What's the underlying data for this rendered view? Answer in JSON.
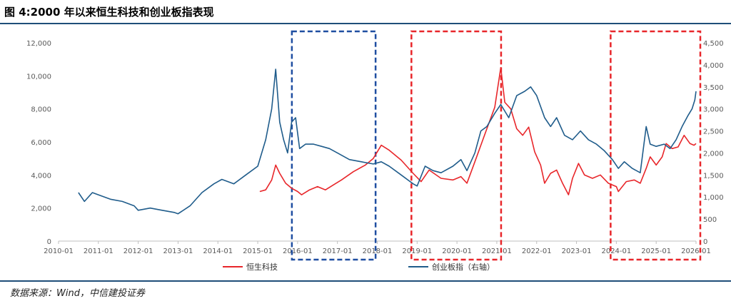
{
  "header": {
    "title": "图 4:2000 年以来恒生科技和创业板指表现"
  },
  "footer": {
    "source": "数据来源：Wind，中信建投证券"
  },
  "chart_data": {
    "type": "line",
    "title": "图 4:2000 年以来恒生科技和创业板指表现",
    "x_tick_labels": [
      "2010-01",
      "2011-01",
      "2012-01",
      "2013-01",
      "2014-01",
      "2015-01",
      "2016-01",
      "2017-01",
      "2018-01",
      "2019-01",
      "2020-01",
      "2021-01",
      "2022-01",
      "2023-01",
      "2024-01",
      "2025-01",
      "2026-01"
    ],
    "y_left": {
      "ticks": [
        "0",
        "2,000",
        "4,000",
        "6,000",
        "8,000",
        "10,000",
        "12,000"
      ],
      "range": [
        0,
        12000
      ]
    },
    "y_right": {
      "ticks": [
        "0",
        "500",
        "1,000",
        "1,500",
        "2,000",
        "2,500",
        "3,000",
        "3,500",
        "4,000",
        "4,500"
      ],
      "range": [
        0,
        4500
      ]
    },
    "x_range": [
      2010.0,
      2026.0
    ],
    "grid": false,
    "legend_position": "bottom",
    "series": [
      {
        "name": "恒生科技",
        "axis": "left",
        "color": "#e8262a",
        "points": [
          [
            2015.05,
            3000
          ],
          [
            2015.2,
            3100
          ],
          [
            2015.35,
            3700
          ],
          [
            2015.45,
            4600
          ],
          [
            2015.55,
            4100
          ],
          [
            2015.7,
            3500
          ],
          [
            2015.85,
            3200
          ],
          [
            2016.0,
            3000
          ],
          [
            2016.1,
            2800
          ],
          [
            2016.3,
            3100
          ],
          [
            2016.5,
            3300
          ],
          [
            2016.7,
            3100
          ],
          [
            2016.9,
            3400
          ],
          [
            2017.1,
            3700
          ],
          [
            2017.4,
            4200
          ],
          [
            2017.7,
            4600
          ],
          [
            2017.9,
            5000
          ],
          [
            2018.1,
            5800
          ],
          [
            2018.3,
            5500
          ],
          [
            2018.6,
            4900
          ],
          [
            2018.9,
            4100
          ],
          [
            2019.1,
            3600
          ],
          [
            2019.3,
            4300
          ],
          [
            2019.6,
            3800
          ],
          [
            2019.9,
            3700
          ],
          [
            2020.1,
            3900
          ],
          [
            2020.25,
            3500
          ],
          [
            2020.45,
            4800
          ],
          [
            2020.6,
            5800
          ],
          [
            2020.75,
            6800
          ],
          [
            2020.95,
            8100
          ],
          [
            2021.1,
            10500
          ],
          [
            2021.2,
            8400
          ],
          [
            2021.35,
            8000
          ],
          [
            2021.5,
            6800
          ],
          [
            2021.65,
            6400
          ],
          [
            2021.8,
            6900
          ],
          [
            2021.95,
            5400
          ],
          [
            2022.1,
            4600
          ],
          [
            2022.2,
            3500
          ],
          [
            2022.35,
            4100
          ],
          [
            2022.5,
            4300
          ],
          [
            2022.65,
            3500
          ],
          [
            2022.8,
            2800
          ],
          [
            2022.9,
            3800
          ],
          [
            2023.05,
            4700
          ],
          [
            2023.2,
            4000
          ],
          [
            2023.4,
            3800
          ],
          [
            2023.6,
            4000
          ],
          [
            2023.8,
            3500
          ],
          [
            2024.0,
            3300
          ],
          [
            2024.05,
            3000
          ],
          [
            2024.25,
            3600
          ],
          [
            2024.45,
            3700
          ],
          [
            2024.6,
            3500
          ],
          [
            2024.75,
            4400
          ],
          [
            2024.85,
            5100
          ],
          [
            2025.0,
            4600
          ],
          [
            2025.15,
            5100
          ],
          [
            2025.25,
            5900
          ],
          [
            2025.4,
            5600
          ],
          [
            2025.55,
            5700
          ],
          [
            2025.7,
            6400
          ],
          [
            2025.85,
            5900
          ],
          [
            2025.95,
            5800
          ],
          [
            2026.0,
            5900
          ]
        ]
      },
      {
        "name": "创业板指（右轴）",
        "axis": "right",
        "color": "#1f5c8b",
        "points": [
          [
            2010.5,
            1100
          ],
          [
            2010.65,
            900
          ],
          [
            2010.85,
            1100
          ],
          [
            2011.0,
            1050
          ],
          [
            2011.3,
            950
          ],
          [
            2011.6,
            900
          ],
          [
            2011.9,
            800
          ],
          [
            2012.0,
            700
          ],
          [
            2012.3,
            750
          ],
          [
            2012.6,
            700
          ],
          [
            2012.9,
            650
          ],
          [
            2013.0,
            620
          ],
          [
            2013.3,
            800
          ],
          [
            2013.6,
            1100
          ],
          [
            2013.9,
            1300
          ],
          [
            2014.1,
            1400
          ],
          [
            2014.4,
            1300
          ],
          [
            2014.7,
            1500
          ],
          [
            2015.0,
            1700
          ],
          [
            2015.2,
            2300
          ],
          [
            2015.35,
            3000
          ],
          [
            2015.45,
            3900
          ],
          [
            2015.55,
            2700
          ],
          [
            2015.65,
            2300
          ],
          [
            2015.75,
            2000
          ],
          [
            2015.85,
            2700
          ],
          [
            2015.95,
            2800
          ],
          [
            2016.05,
            2100
          ],
          [
            2016.2,
            2200
          ],
          [
            2016.4,
            2200
          ],
          [
            2016.6,
            2150
          ],
          [
            2016.8,
            2100
          ],
          [
            2017.0,
            2000
          ],
          [
            2017.3,
            1850
          ],
          [
            2017.6,
            1800
          ],
          [
            2017.9,
            1750
          ],
          [
            2018.1,
            1800
          ],
          [
            2018.3,
            1700
          ],
          [
            2018.6,
            1500
          ],
          [
            2018.9,
            1300
          ],
          [
            2019.0,
            1250
          ],
          [
            2019.2,
            1700
          ],
          [
            2019.4,
            1600
          ],
          [
            2019.6,
            1550
          ],
          [
            2019.9,
            1700
          ],
          [
            2020.1,
            1850
          ],
          [
            2020.25,
            1600
          ],
          [
            2020.45,
            2000
          ],
          [
            2020.6,
            2500
          ],
          [
            2020.75,
            2600
          ],
          [
            2020.95,
            2900
          ],
          [
            2021.1,
            3100
          ],
          [
            2021.3,
            2800
          ],
          [
            2021.5,
            3300
          ],
          [
            2021.7,
            3400
          ],
          [
            2021.85,
            3500
          ],
          [
            2022.0,
            3300
          ],
          [
            2022.2,
            2800
          ],
          [
            2022.35,
            2600
          ],
          [
            2022.5,
            2800
          ],
          [
            2022.7,
            2400
          ],
          [
            2022.9,
            2300
          ],
          [
            2023.1,
            2500
          ],
          [
            2023.3,
            2300
          ],
          [
            2023.5,
            2200
          ],
          [
            2023.7,
            2050
          ],
          [
            2023.9,
            1850
          ],
          [
            2024.05,
            1650
          ],
          [
            2024.2,
            1800
          ],
          [
            2024.4,
            1650
          ],
          [
            2024.6,
            1550
          ],
          [
            2024.75,
            2600
          ],
          [
            2024.85,
            2200
          ],
          [
            2025.0,
            2150
          ],
          [
            2025.2,
            2200
          ],
          [
            2025.35,
            2100
          ],
          [
            2025.5,
            2300
          ],
          [
            2025.65,
            2600
          ],
          [
            2025.8,
            2850
          ],
          [
            2025.9,
            3000
          ],
          [
            2025.97,
            3200
          ],
          [
            2026.0,
            3400
          ]
        ]
      }
    ],
    "highlight_boxes": [
      {
        "x_start": 2016.0,
        "x_end": 2017.85,
        "color": "#1f4ea1"
      },
      {
        "x_start": 2019.0,
        "x_end": 2021.0,
        "color": "#e8262a"
      },
      {
        "x_start": 2024.0,
        "x_end": 2026.0,
        "color": "#e8262a"
      }
    ]
  }
}
